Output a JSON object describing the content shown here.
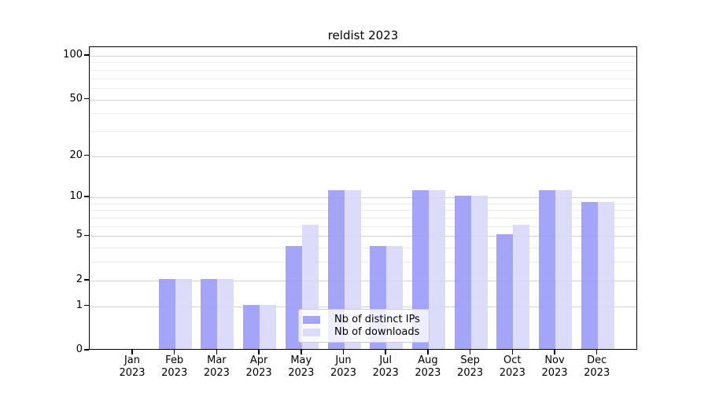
{
  "chart_data": {
    "type": "bar",
    "title": "reldist 2023",
    "categories": [
      "Jan",
      "Feb",
      "Mar",
      "Apr",
      "May",
      "Jun",
      "Jul",
      "Aug",
      "Sep",
      "Oct",
      "Nov",
      "Dec"
    ],
    "category_year": "2023",
    "series": [
      {
        "name": "Nb of distinct IPs",
        "color": "#9a9af7",
        "alpha": 0.9,
        "values": [
          0,
          2,
          2,
          1,
          4,
          11,
          4,
          11,
          10,
          5,
          11,
          9
        ]
      },
      {
        "name": "Nb of downloads",
        "color": "#d8d8f9",
        "alpha": 0.9,
        "values": [
          0,
          2,
          2,
          1,
          6,
          11,
          4,
          11,
          10,
          6,
          11,
          9
        ]
      }
    ],
    "yscale": "log1p",
    "ylim": [
      0,
      114.6
    ],
    "y_major_ticks": [
      0,
      1,
      2,
      5,
      10,
      20,
      50,
      100
    ],
    "y_minor_gridlines": [
      3,
      4,
      6,
      7,
      8,
      9,
      30,
      40,
      60,
      70,
      80,
      90
    ],
    "grid": true,
    "legend_position": "lower center",
    "colors": {
      "axis": "#000000",
      "major_grid": "#d2d2d2",
      "minor_grid": "#ececec",
      "legend_border": "#cccccc",
      "legend_background": "rgba(255,255,255,0.8)"
    }
  }
}
